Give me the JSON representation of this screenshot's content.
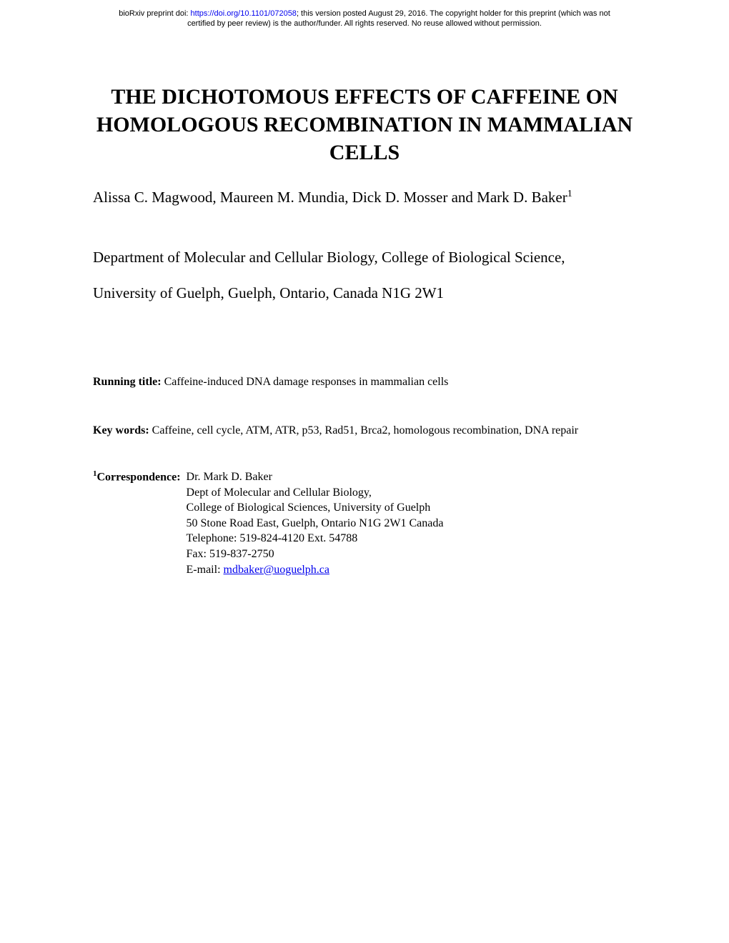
{
  "preprint": {
    "doi_prefix": "bioRxiv preprint doi: ",
    "doi_url": "https://doi.org/10.1101/072058",
    "doi_suffix": "; this version posted August 29, 2016. The copyright holder for this preprint (which was not",
    "line2": "certified by peer review) is the author/funder. All rights reserved. No reuse allowed without permission."
  },
  "title": "THE DICHOTOMOUS EFFECTS OF CAFFEINE ON HOMOLOGOUS RECOMBINATION IN MAMMALIAN CELLS",
  "authors": "Alissa C. Magwood, Maureen M. Mundia, Dick D. Mosser and Mark D. Baker",
  "authors_sup": "1",
  "affiliation_line1": "Department of Molecular and Cellular Biology, College of Biological Science,",
  "affiliation_line2": "University of Guelph, Guelph, Ontario, Canada N1G 2W1",
  "running_title_label": "Running title:  ",
  "running_title_text": "Caffeine-induced DNA damage responses in mammalian cells",
  "keywords_label": "Key words: ",
  "keywords_text": "Caffeine, cell cycle, ATM, ATR, p53, Rad51, Brca2, homologous recombination, DNA repair",
  "correspondence": {
    "sup": "1",
    "label": "Correspondence:  ",
    "name": "Dr. Mark D. Baker",
    "dept": "Dept of Molecular and Cellular Biology,",
    "college": "College of Biological Sciences, University of Guelph",
    "address": "50 Stone Road East, Guelph, Ontario N1G 2W1 Canada",
    "phone": "Telephone: 519-824-4120 Ext. 54788",
    "fax": "Fax: 519-837-2750",
    "email_label": "E-mail: ",
    "email": "mdbaker@uoguelph.ca"
  }
}
